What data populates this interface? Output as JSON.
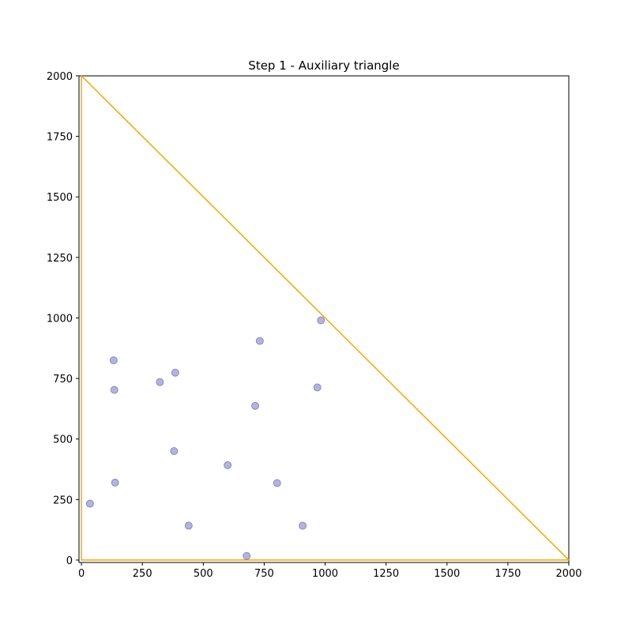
{
  "chart_data": {
    "type": "scatter",
    "title": "Step 1 - Auxiliary triangle",
    "xlabel": "",
    "ylabel": "",
    "xlim": [
      -10,
      2000
    ],
    "ylim": [
      -10,
      2000
    ],
    "xticks": [
      0,
      250,
      500,
      750,
      1000,
      1250,
      1500,
      1750,
      2000
    ],
    "yticks": [
      0,
      250,
      500,
      750,
      1000,
      1250,
      1500,
      1750,
      2000
    ],
    "grid": false,
    "points": [
      {
        "x": 35,
        "y": 233
      },
      {
        "x": 138,
        "y": 320
      },
      {
        "x": 132,
        "y": 825
      },
      {
        "x": 135,
        "y": 703
      },
      {
        "x": 322,
        "y": 735
      },
      {
        "x": 385,
        "y": 774
      },
      {
        "x": 380,
        "y": 450
      },
      {
        "x": 440,
        "y": 142
      },
      {
        "x": 600,
        "y": 392
      },
      {
        "x": 678,
        "y": 17
      },
      {
        "x": 713,
        "y": 637
      },
      {
        "x": 732,
        "y": 905
      },
      {
        "x": 803,
        "y": 318
      },
      {
        "x": 908,
        "y": 142
      },
      {
        "x": 968,
        "y": 713
      },
      {
        "x": 983,
        "y": 990
      }
    ],
    "triangle": [
      [
        0,
        0
      ],
      [
        2000,
        0
      ],
      [
        0,
        2000
      ]
    ],
    "colors": {
      "points": "#6a6ab8",
      "triangle": "#ffa500"
    }
  }
}
